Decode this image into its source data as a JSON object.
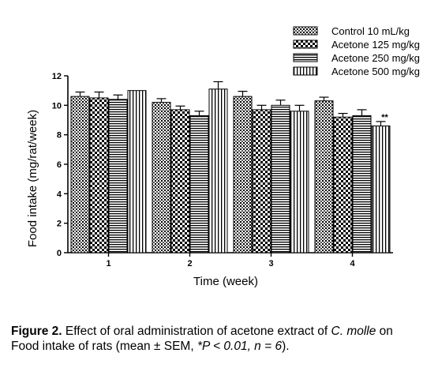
{
  "chart_data": {
    "type": "bar",
    "xlabel": "Time (week)",
    "ylabel": "Food intake (mg/rat/week)",
    "ylim": [
      0,
      12
    ],
    "yticks": [
      0,
      2,
      4,
      6,
      8,
      10,
      12
    ],
    "categories": [
      "1",
      "2",
      "3",
      "4"
    ],
    "series": [
      {
        "name": "Control 10 mL/kg",
        "pattern": "check",
        "values": [
          10.6,
          10.2,
          10.6,
          10.3
        ],
        "errors": [
          0.3,
          0.25,
          0.35,
          0.25
        ]
      },
      {
        "name": "Acetone 125 mg/kg",
        "pattern": "checker",
        "values": [
          10.5,
          9.7,
          9.7,
          9.2
        ],
        "errors": [
          0.4,
          0.25,
          0.3,
          0.25
        ]
      },
      {
        "name": "Acetone 250 mg/kg",
        "pattern": "horizontal",
        "values": [
          10.4,
          9.3,
          10.0,
          9.3
        ],
        "errors": [
          0.3,
          0.3,
          0.35,
          0.4
        ]
      },
      {
        "name": "Acetone 500 mg/kg",
        "pattern": "vertical",
        "values": [
          11.0,
          11.1,
          9.6,
          8.6
        ],
        "errors": [
          0.0,
          0.5,
          0.4,
          0.3
        ]
      }
    ],
    "annotations": [
      {
        "category": "4",
        "series": "Acetone 500 mg/kg",
        "text": "**"
      }
    ],
    "legend_position": "top-right"
  },
  "caption": {
    "label": "Figure 2.",
    "part1": " Effect of oral administration of acetone extract of ",
    "species": "C. molle",
    "part2": " on Food intake of rats (mean ± SEM, ",
    "stats": "*P < 0.01, n = 6",
    "part3": ")."
  }
}
